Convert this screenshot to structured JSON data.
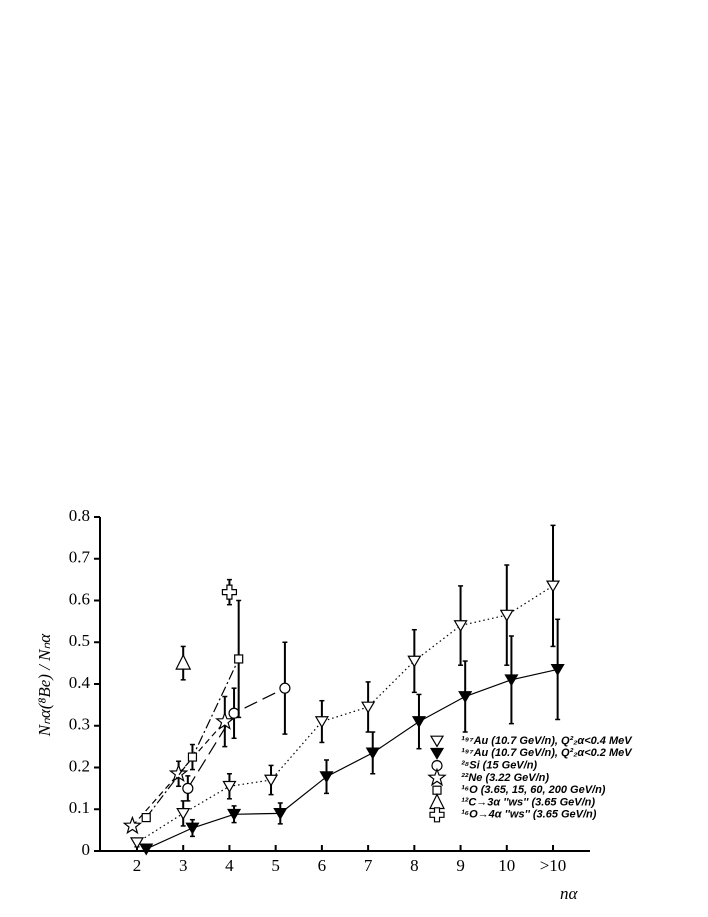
{
  "chart_data": {
    "type": "scatter",
    "x_label": "nα",
    "y_label": "Nₙα(⁸Be) / Nₙα",
    "xlim": [
      1.2,
      11.8
    ],
    "ylim": [
      0,
      0.8
    ],
    "xticks": [
      2,
      3,
      4,
      5,
      6,
      7,
      8,
      9,
      10,
      {
        "value": 11,
        "label": ">10"
      }
    ],
    "yticks": [
      0,
      0.1,
      0.2,
      0.3,
      0.4,
      0.5,
      0.6,
      0.7,
      0.8
    ],
    "legend": "lower right",
    "series": [
      {
        "name": "¹⁹⁷Au (10.7 GeV/n), Q²₂α<0.4 MeV",
        "color": "#000000",
        "marker": "triangle-down-open",
        "line": "dotted",
        "x": [
          2.0,
          3.0,
          4.0,
          4.9,
          6.0,
          7.0,
          8.0,
          9.0,
          10.0,
          11.0
        ],
        "values": [
          0.02,
          0.09,
          0.155,
          0.17,
          0.31,
          0.345,
          0.455,
          0.54,
          0.565,
          0.635
        ],
        "errors": [
          0.01,
          0.03,
          0.03,
          0.035,
          0.05,
          0.06,
          0.075,
          0.095,
          0.12,
          0.145
        ]
      },
      {
        "name": "¹⁹⁷Au (10.7 GeV/n), Q²₂α<0.2 MeV",
        "color": "#000000",
        "marker": "triangle-down-filled",
        "line": "solid",
        "x": [
          2.2,
          3.2,
          4.1,
          5.1,
          6.1,
          7.1,
          8.1,
          9.1,
          10.1,
          11.1
        ],
        "values": [
          0.005,
          0.055,
          0.088,
          0.09,
          0.178,
          0.235,
          0.31,
          0.37,
          0.41,
          0.435
        ],
        "errors": [
          0.005,
          0.02,
          0.02,
          0.025,
          0.04,
          0.05,
          0.065,
          0.085,
          0.105,
          0.12
        ]
      },
      {
        "name": "²⁸Si (15 GeV/n)",
        "color": "#000000",
        "marker": "circle-open",
        "line": "longdash",
        "x": [
          3.1,
          4.1,
          5.2
        ],
        "values": [
          0.15,
          0.33,
          0.39
        ],
        "errors": [
          0.03,
          0.06,
          0.11
        ]
      },
      {
        "name": "²²Ne (3.22 GeV/n)",
        "color": "#000000",
        "marker": "star-open",
        "line": "dashed",
        "x": [
          1.9,
          2.9,
          3.9
        ],
        "values": [
          0.06,
          0.185,
          0.31
        ],
        "errors": [
          0.005,
          0.03,
          0.06
        ]
      },
      {
        "name": "¹⁶O (3.65, 15, 60, 200 GeV/n)",
        "color": "#000000",
        "marker": "square-open",
        "line": "dashdot",
        "x": [
          2.2,
          3.2,
          4.2
        ],
        "values": [
          0.08,
          0.225,
          0.46
        ],
        "errors": [
          0.005,
          0.03,
          0.14
        ]
      },
      {
        "name": "¹²C→3α ''ws'' (3.65 GeV/n)",
        "color": "#000000",
        "marker": "triangle-up-open",
        "line": "none",
        "x": [
          3.0
        ],
        "values": [
          0.45
        ],
        "errors": [
          0.04
        ]
      },
      {
        "name": "¹⁶O→4α ''ws'' (3.65 GeV/n)",
        "color": "#000000",
        "marker": "cross-open",
        "line": "none",
        "x": [
          4.0
        ],
        "values": [
          0.62
        ],
        "errors": [
          0.03
        ]
      }
    ]
  }
}
